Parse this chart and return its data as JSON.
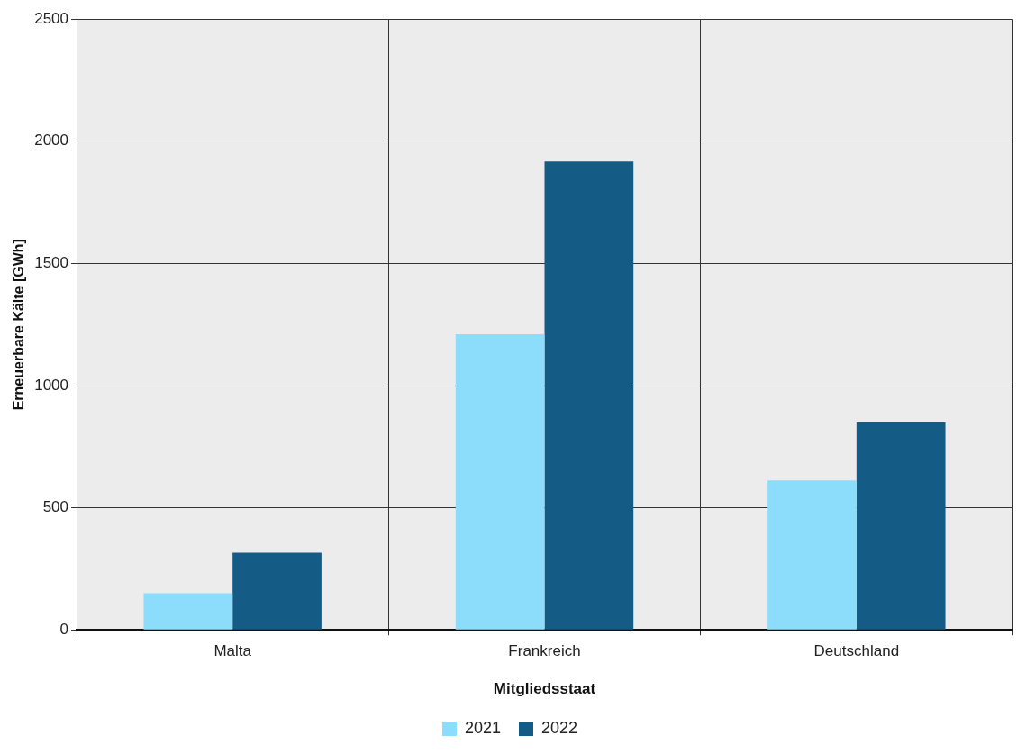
{
  "chart_data": {
    "type": "bar",
    "xlabel": "Mitgliedsstaat",
    "ylabel": "Erneuerbare Kälte [GWh]",
    "categories": [
      "Malta",
      "Frankreich",
      "Deutschland"
    ],
    "series": [
      {
        "name": "2021",
        "color": "#8cdcfc",
        "values": [
          150,
          1210,
          612
        ]
      },
      {
        "name": "2022",
        "color": "#145c86",
        "values": [
          316,
          1917,
          850
        ]
      }
    ],
    "ylim": [
      0,
      2500
    ],
    "yticks": [
      0,
      500,
      1000,
      1500,
      2000,
      2500
    ],
    "grid": true,
    "legend": "bottom"
  }
}
